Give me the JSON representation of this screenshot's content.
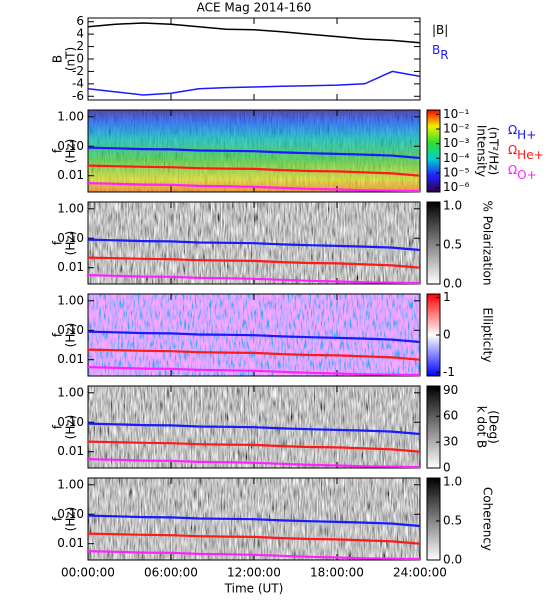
{
  "chart_data": [
    {
      "type": "line",
      "title": "ACE Mag 2014-160",
      "ylabel": [
        "B",
        "(nT)"
      ],
      "xlim": [
        0,
        24
      ],
      "ylim": [
        -6.6,
        6.6
      ],
      "yticks": [
        6,
        4,
        2,
        0,
        -2,
        -4,
        -6
      ],
      "x": [
        0,
        2,
        4,
        6,
        8,
        10,
        12,
        14,
        16,
        18,
        20,
        22,
        24
      ],
      "series": [
        {
          "name": "|B|",
          "color": "#000000",
          "values": [
            5.2,
            5.6,
            5.8,
            5.6,
            5.2,
            4.8,
            4.7,
            4.4,
            4.0,
            3.6,
            3.2,
            3.0,
            2.6
          ]
        },
        {
          "name": "B",
          "subscript": "R",
          "color": "#1a1aff",
          "values": [
            -4.8,
            -5.3,
            -5.8,
            -5.5,
            -4.8,
            -4.6,
            -4.5,
            -4.4,
            -4.3,
            -4.2,
            -4.0,
            -2.0,
            -2.8
          ]
        }
      ]
    },
    {
      "type": "spectrogram",
      "colormap": "rainbow",
      "log_y": true,
      "ylabel": [
        "f",
        "(Hz)"
      ],
      "xlim": [
        0,
        24
      ],
      "ylim": [
        0.0028,
        1.7
      ],
      "yticks": [
        {
          "value": 1,
          "label": "1.00"
        },
        {
          "value": 0.1,
          "label": "0.10"
        },
        {
          "value": 0.01,
          "label": "0.01"
        }
      ],
      "x": [
        0,
        2,
        4,
        6,
        8,
        10,
        12,
        14,
        16,
        18,
        20,
        22,
        24
      ],
      "series": [
        {
          "name": "Ω",
          "subscript": "H+",
          "color": "#1a1aff",
          "values": [
            0.09,
            0.085,
            0.08,
            0.078,
            0.072,
            0.07,
            0.068,
            0.062,
            0.058,
            0.055,
            0.052,
            0.048,
            0.04
          ]
        },
        {
          "name": "Ω",
          "subscript": "He+",
          "color": "#ff1a1a",
          "values": [
            0.022,
            0.021,
            0.02,
            0.0195,
            0.018,
            0.0175,
            0.017,
            0.0155,
            0.0145,
            0.014,
            0.013,
            0.012,
            0.01
          ]
        },
        {
          "name": "Ω",
          "subscript": "O+",
          "color": "#ff22ff",
          "values": [
            0.0056,
            0.0053,
            0.005,
            0.0049,
            0.0045,
            0.0044,
            0.0042,
            0.0039,
            0.0036,
            0.0034,
            0.0032,
            0.0031,
            0.003
          ]
        }
      ],
      "colorbar": {
        "label": [
          "Intensity",
          "(nT²/Hz)"
        ],
        "lim": [
          -6.3,
          -0.7
        ],
        "ticks": [
          {
            "value": -1,
            "label": "10⁻¹"
          },
          {
            "value": -2,
            "label": "10⁻²"
          },
          {
            "value": -3,
            "label": "10⁻³"
          },
          {
            "value": -4,
            "label": "10⁻⁴"
          },
          {
            "value": -5,
            "label": "10⁻⁵"
          },
          {
            "value": -6,
            "label": "10⁻⁶"
          }
        ]
      }
    },
    {
      "type": "spectrogram",
      "colormap": "gray",
      "log_y": true,
      "ylabel": [
        "f",
        "(Hz)"
      ],
      "xlim": [
        0,
        24
      ],
      "ylim": [
        0.0028,
        1.7
      ],
      "yticks": [
        {
          "value": 1,
          "label": "1.00"
        },
        {
          "value": 0.1,
          "label": "0.10"
        },
        {
          "value": 0.01,
          "label": "0.01"
        }
      ],
      "x": [
        0,
        2,
        4,
        6,
        8,
        10,
        12,
        14,
        16,
        18,
        20,
        22,
        24
      ],
      "series": [
        {
          "color": "#1a1aff",
          "values": [
            0.09,
            0.085,
            0.08,
            0.078,
            0.072,
            0.07,
            0.068,
            0.062,
            0.058,
            0.055,
            0.052,
            0.048,
            0.04
          ]
        },
        {
          "color": "#ff1a1a",
          "values": [
            0.022,
            0.021,
            0.02,
            0.0195,
            0.018,
            0.0175,
            0.017,
            0.0155,
            0.0145,
            0.014,
            0.013,
            0.012,
            0.01
          ]
        },
        {
          "color": "#ff22ff",
          "values": [
            0.0056,
            0.0053,
            0.005,
            0.0049,
            0.0045,
            0.0044,
            0.0042,
            0.0039,
            0.0036,
            0.0034,
            0.0032,
            0.0031,
            0.003
          ]
        }
      ],
      "colorbar": {
        "label": [
          "% Polarization"
        ],
        "lim": [
          0,
          1.05
        ],
        "ticks": [
          {
            "value": 1,
            "label": "1.0"
          },
          {
            "value": 0.5,
            "label": "0.5"
          },
          {
            "value": 0,
            "label": "0.0"
          }
        ]
      }
    },
    {
      "type": "spectrogram",
      "colormap": "bwr",
      "log_y": true,
      "ylabel": [
        "f",
        "(Hz)"
      ],
      "xlim": [
        0,
        24
      ],
      "ylim": [
        0.0028,
        1.7
      ],
      "yticks": [
        {
          "value": 1,
          "label": "1.00"
        },
        {
          "value": 0.1,
          "label": "0.10"
        },
        {
          "value": 0.01,
          "label": "0.01"
        }
      ],
      "x": [
        0,
        2,
        4,
        6,
        8,
        10,
        12,
        14,
        16,
        18,
        20,
        22,
        24
      ],
      "series": [
        {
          "color": "#1a1aff",
          "values": [
            0.09,
            0.085,
            0.08,
            0.078,
            0.072,
            0.07,
            0.068,
            0.062,
            0.058,
            0.055,
            0.052,
            0.048,
            0.04
          ]
        },
        {
          "color": "#ff1a1a",
          "values": [
            0.022,
            0.021,
            0.02,
            0.0195,
            0.018,
            0.0175,
            0.017,
            0.0155,
            0.0145,
            0.014,
            0.013,
            0.012,
            0.01
          ]
        },
        {
          "color": "#ff22ff",
          "values": [
            0.0056,
            0.0053,
            0.005,
            0.0049,
            0.0045,
            0.0044,
            0.0042,
            0.0039,
            0.0036,
            0.0034,
            0.0032,
            0.0031,
            0.003
          ]
        }
      ],
      "colorbar": {
        "label": [
          "Ellipticity"
        ],
        "lim": [
          -1.1,
          1.1
        ],
        "ticks": [
          1,
          0,
          -1
        ]
      }
    },
    {
      "type": "spectrogram",
      "colormap": "gray",
      "log_y": true,
      "ylabel": [
        "f",
        "(Hz)"
      ],
      "xlim": [
        0,
        24
      ],
      "ylim": [
        0.0028,
        1.7
      ],
      "yticks": [
        {
          "value": 1,
          "label": "1.00"
        },
        {
          "value": 0.1,
          "label": "0.10"
        },
        {
          "value": 0.01,
          "label": "0.01"
        }
      ],
      "x": [
        0,
        2,
        4,
        6,
        8,
        10,
        12,
        14,
        16,
        18,
        20,
        22,
        24
      ],
      "series": [
        {
          "color": "#1a1aff",
          "values": [
            0.09,
            0.085,
            0.08,
            0.078,
            0.072,
            0.07,
            0.068,
            0.062,
            0.058,
            0.055,
            0.052,
            0.048,
            0.04
          ]
        },
        {
          "color": "#ff1a1a",
          "values": [
            0.022,
            0.021,
            0.02,
            0.0195,
            0.018,
            0.0175,
            0.017,
            0.0155,
            0.0145,
            0.014,
            0.013,
            0.012,
            0.01
          ]
        },
        {
          "color": "#ff22ff",
          "values": [
            0.0056,
            0.0053,
            0.005,
            0.0049,
            0.0045,
            0.0044,
            0.0042,
            0.0039,
            0.0036,
            0.0034,
            0.0032,
            0.0031,
            0.003
          ]
        }
      ],
      "colorbar": {
        "label": [
          "k dot B",
          "(Deg)"
        ],
        "lim": [
          0,
          95
        ],
        "ticks": [
          90,
          60,
          30,
          0
        ]
      }
    },
    {
      "type": "spectrogram",
      "colormap": "gray",
      "log_y": true,
      "ylabel": [
        "f",
        "(Hz)"
      ],
      "xlim": [
        0,
        24
      ],
      "ylim": [
        0.0028,
        1.7
      ],
      "yticks": [
        {
          "value": 1,
          "label": "1.00"
        },
        {
          "value": 0.1,
          "label": "0.10"
        },
        {
          "value": 0.01,
          "label": "0.01"
        }
      ],
      "x": [
        0,
        2,
        4,
        6,
        8,
        10,
        12,
        14,
        16,
        18,
        20,
        22,
        24
      ],
      "series": [
        {
          "color": "#1a1aff",
          "values": [
            0.09,
            0.085,
            0.08,
            0.078,
            0.072,
            0.07,
            0.068,
            0.062,
            0.058,
            0.055,
            0.052,
            0.048,
            0.04
          ]
        },
        {
          "color": "#ff1a1a",
          "values": [
            0.022,
            0.021,
            0.02,
            0.0195,
            0.018,
            0.0175,
            0.017,
            0.0155,
            0.0145,
            0.014,
            0.013,
            0.012,
            0.01
          ]
        },
        {
          "color": "#ff22ff",
          "values": [
            0.0056,
            0.0053,
            0.005,
            0.0049,
            0.0045,
            0.0044,
            0.0042,
            0.0039,
            0.0036,
            0.0034,
            0.0032,
            0.0031,
            0.003
          ]
        }
      ],
      "colorbar": {
        "label": [
          "Coherency"
        ],
        "lim": [
          0,
          1.05
        ],
        "ticks": [
          {
            "value": 1,
            "label": "1.0"
          },
          {
            "value": 0.5,
            "label": "0.5"
          },
          {
            "value": 0,
            "label": "0.0"
          }
        ]
      },
      "xlabel": "Time (UT)",
      "xticks": [
        {
          "value": 0,
          "label": "00:00:00"
        },
        {
          "value": 6,
          "label": "06:00:00"
        },
        {
          "value": 12,
          "label": "12:00:00"
        },
        {
          "value": 18,
          "label": "18:00:00"
        },
        {
          "value": 24,
          "label": "24:00:00"
        }
      ]
    }
  ]
}
